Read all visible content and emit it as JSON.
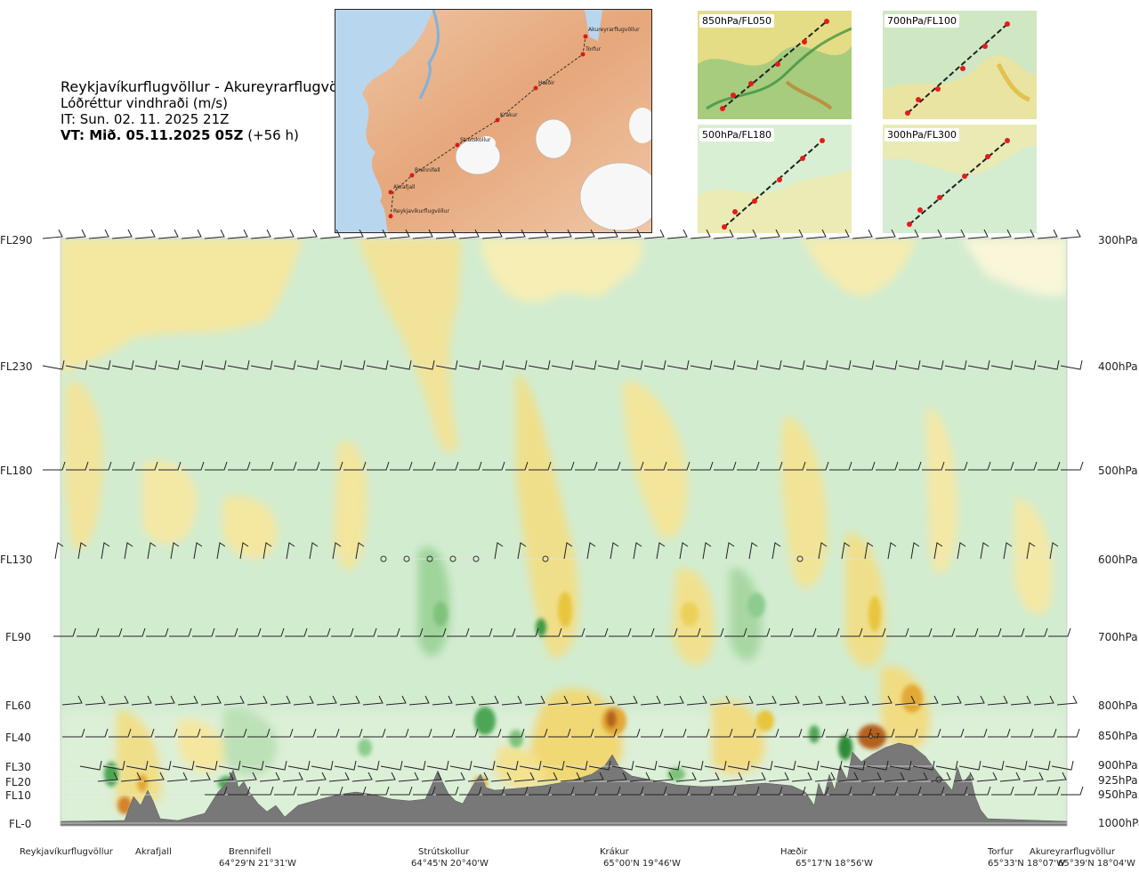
{
  "header": {
    "route": "Reykjavíkurflugvöllur - Akureyrarflugvöllur",
    "subtitle": "Lóðréttur vindhraði (m/s)",
    "issue_time": "IT: Sun. 02. 11. 2025 21Z",
    "valid_label": "VT: Mið. 05.11.2025 05Z",
    "valid_offset": "(+56 h)"
  },
  "map": {
    "waypoints": [
      "Akureyrarflugvöllur",
      "Torfur",
      "Hæðir",
      "Krákur",
      "Strútskollur",
      "Brennifell",
      "Akrafjall",
      "Reykjavíkurflugvöllur"
    ]
  },
  "mini_maps": [
    {
      "label": "850hPa/FL050"
    },
    {
      "label": "700hPa/FL100"
    },
    {
      "label": "500hPa/FL180"
    },
    {
      "label": "300hPa/FL300"
    }
  ],
  "chart_data": {
    "type": "heatmap",
    "title": "Reykjavíkurflugvöllur - Akureyrarflugvöllur",
    "variable": "Lóðréttur vindhraði (m/s)",
    "x_axis": "route distance (Reykjavíkurflugvöllur → Akureyrarflugvöllur)",
    "left_axis_labels": [
      "FL290",
      "FL230",
      "FL180",
      "FL130",
      "FL90",
      "FL60",
      "FL40",
      "FL30",
      "FL20",
      "FL10",
      "FL-0"
    ],
    "right_axis_labels": [
      "300hPa",
      "400hPa",
      "500hPa",
      "600hPa",
      "700hPa",
      "800hPa",
      "850hPa",
      "900hPa",
      "925hPa",
      "950hPa",
      "1000hPa"
    ],
    "pressure_levels_hpa": [
      300,
      400,
      500,
      600,
      700,
      800,
      850,
      900,
      925,
      950,
      1000
    ],
    "colors": {
      "strong_down": "#3f9a45",
      "mod_down": "#8ccc8e",
      "weak_down": "#bfe3bd",
      "faint_down": "#d9efd3",
      "neutral": "#fbfbe4",
      "weak_up": "#f4e79c",
      "mod_up": "#edd25a",
      "strong_up": "#e3a934",
      "extreme_up": "#b5611d",
      "terrain": "#787878"
    },
    "locations": [
      {
        "name": "Reykjavíkurflugvöllur",
        "coord": ""
      },
      {
        "name": "Akrafjall",
        "coord": ""
      },
      {
        "name": "Brennifell",
        "coord": "64°29'N 21°31'W"
      },
      {
        "name": "Strútskollur",
        "coord": "64°45'N 20°40'W"
      },
      {
        "name": "Krákur",
        "coord": "65°00'N 19°46'W"
      },
      {
        "name": "Hæðir",
        "coord": "65°17'N 18°56'W"
      },
      {
        "name": "Torfur",
        "coord": "65°33'N 18°07'W"
      },
      {
        "name": "Akureyrarflugvöllur",
        "coord": "65°39'N 18°04'W"
      }
    ],
    "annotation": "0.7"
  }
}
